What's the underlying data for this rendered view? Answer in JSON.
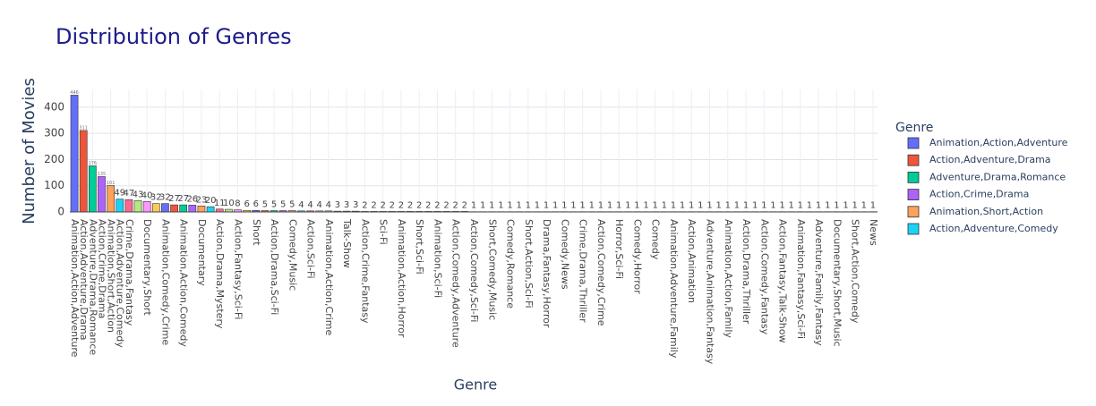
{
  "chart_data": {
    "type": "bar",
    "title": "Distribution of Genres",
    "x_label": "Genre",
    "y_label": "Number of Movies",
    "legend_title": "Genre",
    "categories": [
      "Animation,Action,Adventure",
      "Action,Adventure,Drama",
      "Adventure,Drama,Romance",
      "Action,Crime,Drama",
      "Animation,Short,Action",
      "Action,Adventure,Comedy",
      "Crime,Drama,Fantasy",
      null,
      "Documentary,Short",
      null,
      "Animation,Comedy,Crime",
      null,
      "Animation,Action,Comedy",
      null,
      "Documentary",
      null,
      "Action,Drama,Mystery",
      null,
      "Action,Fantasy,Sci-Fi",
      null,
      "Short",
      null,
      "Action,Drama,Sci-Fi",
      null,
      "Comedy,Music",
      null,
      "Action,Sci-Fi",
      null,
      "Animation,Action,Crime",
      null,
      "Talk-Show",
      null,
      "Action,Crime,Fantasy",
      null,
      "Sci-Fi",
      null,
      "Animation,Action,Horror",
      null,
      "Short,Sci-Fi",
      null,
      "Animation,Sci-Fi",
      null,
      "Action,Comedy,Adventure",
      null,
      "Action,Comedy,Sci-Fi",
      null,
      "Short,Comedy,Music",
      null,
      "Comedy,Romance",
      null,
      "Short,Action,Sci-Fi",
      null,
      "Drama,Fantasy,Horror",
      null,
      "Comedy,News",
      null,
      "Crime,Drama,Thriller",
      null,
      "Action,Comedy,Crime",
      null,
      "Horror,Sci-Fi",
      null,
      "Comedy,Horror",
      null,
      "Comedy",
      null,
      "Animation,Adventure,Family",
      null,
      "Action,Animation",
      null,
      "Adventure,Animation,Fantasy",
      null,
      "Animation,Action,Family",
      null,
      "Action,Drama,Thriller",
      null,
      "Action,Comedy,Fantasy",
      null,
      "Action,Fantasy,Talk-Show",
      null,
      "Animation,Fantasy,Sci-Fi",
      null,
      "Adventure,Family,Fantasy",
      null,
      "Documentary,Short,Music",
      null,
      "Short,Action,Comedy",
      null,
      "News"
    ],
    "values": [
      446,
      311,
      176,
      135,
      101,
      49,
      47,
      43,
      40,
      32,
      32,
      27,
      27,
      26,
      23,
      20,
      11,
      10,
      8,
      6,
      6,
      5,
      5,
      5,
      5,
      4,
      4,
      4,
      4,
      3,
      3,
      3,
      2,
      2,
      2,
      2,
      2,
      2,
      2,
      2,
      2,
      2,
      2,
      2,
      1,
      1,
      1,
      1,
      1,
      1,
      1,
      1,
      1,
      1,
      1,
      1,
      1,
      1,
      1,
      1,
      1,
      1,
      1,
      1,
      1,
      1,
      1,
      1,
      1,
      1,
      1,
      1,
      1,
      1,
      1,
      1,
      1,
      1,
      1,
      1,
      1,
      1,
      1,
      1,
      1,
      1,
      1,
      1,
      1
    ],
    "colors": [
      "#636efa",
      "#EF553B",
      "#00cc96",
      "#ab63fa",
      "#FFA15A",
      "#19d3f3",
      "#FF6692",
      "#B6E880",
      "#FF97FF",
      "#FECB52"
    ],
    "legend_count": 6,
    "ylim": [
      0,
      468
    ],
    "yticks": [
      0,
      100,
      200,
      300,
      400
    ],
    "grid": true
  }
}
